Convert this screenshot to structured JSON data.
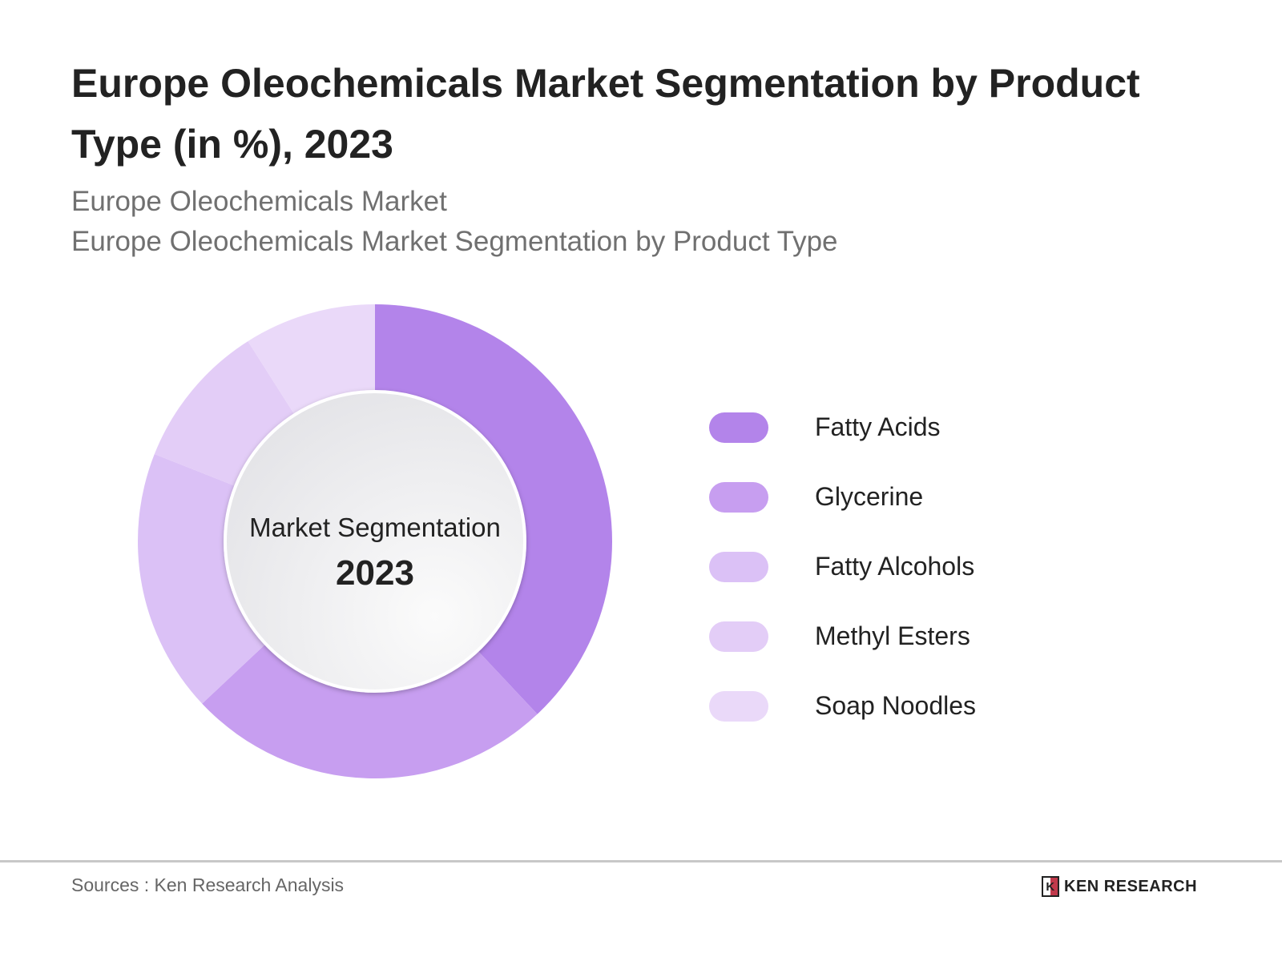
{
  "title": "Europe Oleochemicals Market Segmentation by Product Type (in %), 2023",
  "subtitle1": "Europe Oleochemicals Market",
  "subtitle2": "Europe Oleochemicals Market Segmentation by Product Type",
  "chart_data": {
    "type": "pie",
    "variant": "donut",
    "center_label": "Market Segmentation",
    "center_year": "2023",
    "legend_position": "right",
    "categories": [
      "Fatty Acids",
      "Glycerine",
      "Fatty Alcohols",
      "Methyl Esters",
      "Soap Noodles"
    ],
    "values": [
      38,
      25,
      18,
      10,
      9
    ],
    "colors": [
      "#b384ea",
      "#c79ef0",
      "#dbc1f6",
      "#e3cdf7",
      "#ead9f9"
    ]
  },
  "footer": {
    "source": "Sources : Ken Research Analysis",
    "logo_text": "KEN RESEARCH"
  }
}
